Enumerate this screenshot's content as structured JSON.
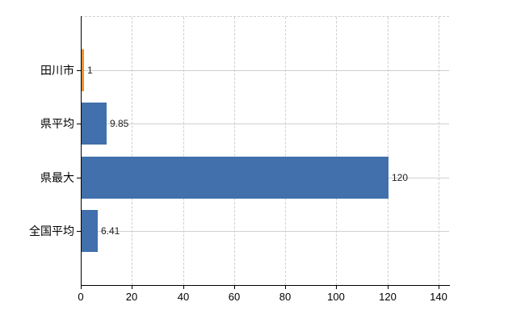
{
  "chart_data": {
    "type": "bar",
    "orientation": "horizontal",
    "title": "",
    "xlabel": "",
    "ylabel": "",
    "categories": [
      "田川市",
      "県平均",
      "県最大",
      "全国平均"
    ],
    "values": [
      1,
      9.85,
      120,
      6.41
    ],
    "value_labels": [
      "1",
      "9.85",
      "120",
      "6.41"
    ],
    "bar_colors": [
      "#ee8f2d",
      "#4170ac",
      "#4170ac",
      "#4170ac"
    ],
    "highlight_bar_color": "#ee8f2d",
    "default_bar_color": "#4170ac",
    "x_ticks": [
      0,
      20,
      40,
      60,
      80,
      100,
      120,
      140
    ],
    "x_tick_labels": [
      "0",
      "20",
      "40",
      "60",
      "80",
      "100",
      "120",
      "140"
    ],
    "xlim": [
      0,
      144
    ],
    "grid": "on",
    "gridline_color": "#ccd1cf",
    "axis_color": "#000000",
    "value_label_color": "#222222",
    "category_label_color": "#000000"
  }
}
